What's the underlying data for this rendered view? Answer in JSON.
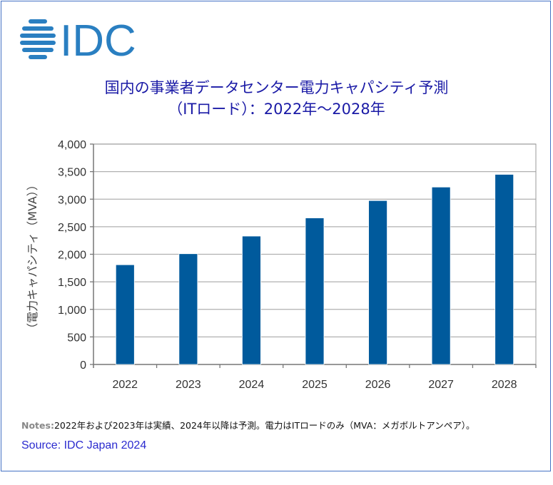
{
  "logo_text": "IDC",
  "chart_data": {
    "type": "bar",
    "title_line1": "国内の事業者データセンター電力キャパシティ予測",
    "title_line2": "（ITロード）：2022年～2028年",
    "categories": [
      "2022",
      "2023",
      "2024",
      "2025",
      "2026",
      "2027",
      "2028"
    ],
    "values": [
      1810,
      2010,
      2330,
      2660,
      2975,
      3220,
      3450
    ],
    "ylabel": "（電力キャパシティ（MVA））",
    "xlabel": "",
    "ylim": [
      0,
      4000
    ],
    "yticks": [
      "0",
      "500",
      "1,000",
      "1,500",
      "2,000",
      "2,500",
      "3,000",
      "3,500",
      "4,000"
    ],
    "grid": true,
    "bar_color": "#005a9c"
  },
  "notes_label": "Notes:",
  "notes_text": "2022年および2023年は実績、2024年以降は予測。電力はITロードのみ（MVA：メガボルトアンペア）。",
  "source": "Source: IDC Japan 2024"
}
